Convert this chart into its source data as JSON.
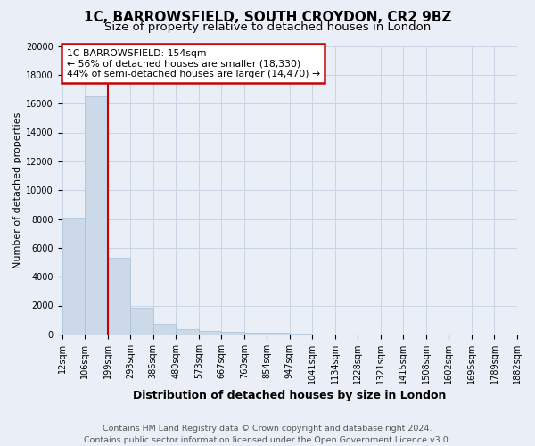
{
  "title": "1C, BARROWSFIELD, SOUTH CROYDON, CR2 9BZ",
  "subtitle": "Size of property relative to detached houses in London",
  "xlabel": "Distribution of detached houses by size in London",
  "ylabel": "Number of detached properties",
  "footnote": "Contains HM Land Registry data © Crown copyright and database right 2024.\nContains public sector information licensed under the Open Government Licence v3.0.",
  "bin_labels": [
    "12sqm",
    "106sqm",
    "199sqm",
    "293sqm",
    "386sqm",
    "480sqm",
    "573sqm",
    "667sqm",
    "760sqm",
    "854sqm",
    "947sqm",
    "1041sqm",
    "1134sqm",
    "1228sqm",
    "1321sqm",
    "1415sqm",
    "1508sqm",
    "1602sqm",
    "1695sqm",
    "1789sqm",
    "1882sqm"
  ],
  "bar_values": [
    8100,
    16500,
    5300,
    1820,
    750,
    390,
    215,
    155,
    105,
    105,
    30,
    10,
    5,
    3,
    2,
    2,
    1,
    1,
    1,
    0
  ],
  "bar_color": "#ccd9e8",
  "bar_edge_color": "#a8bed4",
  "ylim": [
    0,
    20000
  ],
  "yticks": [
    0,
    2000,
    4000,
    6000,
    8000,
    10000,
    12000,
    14000,
    16000,
    18000,
    20000
  ],
  "vline_x_index": 1.5,
  "annotation_text": "1C BARROWSFIELD: 154sqm\n← 56% of detached houses are smaller (18,330)\n44% of semi-detached houses are larger (14,470) →",
  "annotation_box_facecolor": "#ffffff",
  "annotation_box_edgecolor": "#cc0000",
  "vline_color": "#cc0000",
  "grid_color": "#c8d4e4",
  "background_color": "#eaeff7",
  "title_fontsize": 11,
  "subtitle_fontsize": 9.5,
  "xlabel_fontsize": 9,
  "ylabel_fontsize": 8,
  "tick_fontsize": 7,
  "annotation_fontsize": 7.8,
  "footnote_fontsize": 6.8
}
